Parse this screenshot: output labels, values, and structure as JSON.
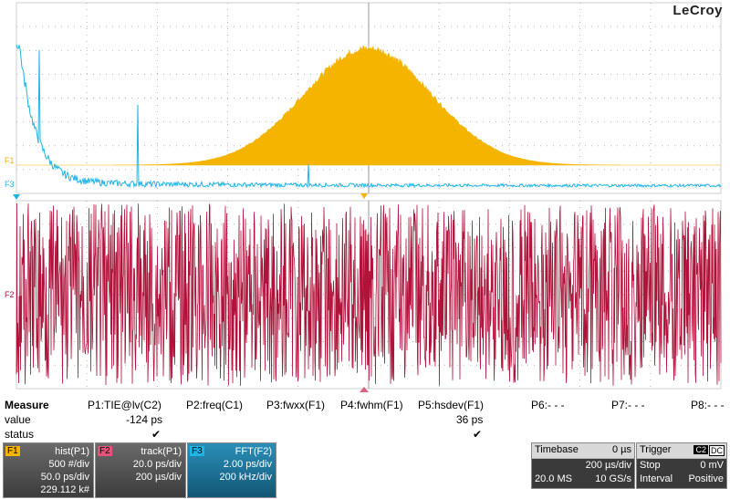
{
  "brand": "LeCroy",
  "channel_labels": {
    "f1": "F1",
    "f2": "F2",
    "f3": "F3"
  },
  "colors": {
    "f1": "#f5b400",
    "f2": "#b0123a",
    "f3": "#1eb4e6",
    "grid": "#b5b5b5"
  },
  "measure": {
    "title": "Measure",
    "row_labels": {
      "value": "value",
      "status": "status"
    },
    "params": [
      {
        "name": "P1:TIE@lv(C2)",
        "value": "-124 ps",
        "status": "✔"
      },
      {
        "name": "P2:freq(C1)",
        "value": "",
        "status": ""
      },
      {
        "name": "P3:fwxx(F1)",
        "value": "",
        "status": ""
      },
      {
        "name": "P4:fwhm(F1)",
        "value": "",
        "status": ""
      },
      {
        "name": "P5:hsdev(F1)",
        "value": "36 ps",
        "status": "✔"
      },
      {
        "name": "P6:- - -",
        "value": "",
        "status": ""
      },
      {
        "name": "P7:- - -",
        "value": "",
        "status": ""
      },
      {
        "name": "P8:- - -",
        "value": "",
        "status": ""
      }
    ]
  },
  "traces": [
    {
      "tag": "F1",
      "name": "hist(P1)",
      "line1": "500 #/div",
      "line2": "50.0 ps/div",
      "line3": "229.112 k#"
    },
    {
      "tag": "F2",
      "name": "track(P1)",
      "line1": "20.0 ps/div",
      "line2": "200 µs/div",
      "line3": ""
    },
    {
      "tag": "F3",
      "name": "FFT(F2)",
      "line1": "2.00 ps/div",
      "line2": "200 kHz/div",
      "line3": ""
    }
  ],
  "timebase": {
    "label": "Timebase",
    "delay": "0 µs",
    "per_div": "200 µs/div",
    "samples": "20.0 MS",
    "rate": "10 GS/s"
  },
  "trigger": {
    "label": "Trigger",
    "source": "C2",
    "coupling": "DC",
    "mode": "Stop",
    "level": "0 mV",
    "type": "Interval",
    "slope": "Positive"
  }
}
